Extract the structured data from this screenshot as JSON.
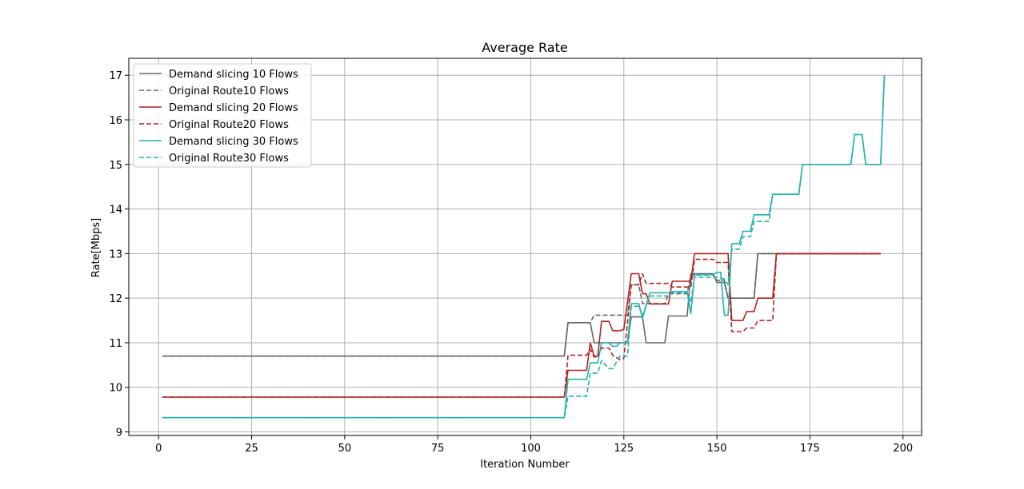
{
  "chart_data": {
    "type": "line",
    "title": "Average Rate",
    "xlabel": "Iteration Number",
    "ylabel": "Rate[Mbps]",
    "xlim": [
      -8,
      205
    ],
    "ylim": [
      8.92,
      17.38
    ],
    "xticks": [
      0,
      25,
      50,
      75,
      100,
      125,
      150,
      175,
      200
    ],
    "yticks": [
      9,
      10,
      11,
      12,
      13,
      14,
      15,
      16,
      17
    ],
    "grid": true,
    "legend_position": "upper-left",
    "colors": {
      "gray": "#666666",
      "red": "#b22222",
      "teal": "#20b2aa"
    },
    "series": [
      {
        "name": "Demand slicing 10 Flows",
        "color": "#666666",
        "dash": "solid",
        "points": [
          [
            1,
            10.7
          ],
          [
            109,
            10.7
          ],
          [
            110,
            11.45
          ],
          [
            116,
            11.45
          ],
          [
            117,
            11.0
          ],
          [
            126,
            11.0
          ],
          [
            127,
            11.58
          ],
          [
            130,
            11.58
          ],
          [
            131,
            11.0
          ],
          [
            136,
            11.0
          ],
          [
            137,
            11.6
          ],
          [
            142,
            11.6
          ],
          [
            143,
            12.55
          ],
          [
            149,
            12.55
          ],
          [
            150,
            12.35
          ],
          [
            152,
            12.35
          ],
          [
            153,
            12.0
          ],
          [
            160,
            12.0
          ],
          [
            161,
            13.0
          ],
          [
            194,
            13.0
          ]
        ]
      },
      {
        "name": "Original Route10 Flows",
        "color": "#666666",
        "dash": "dashed",
        "points": [
          [
            1,
            10.7
          ],
          [
            109,
            10.7
          ],
          [
            110,
            11.45
          ],
          [
            116,
            11.45
          ],
          [
            117,
            11.62
          ],
          [
            126,
            11.62
          ],
          [
            127,
            12.3
          ],
          [
            129,
            12.3
          ],
          [
            130,
            11.88
          ],
          [
            136,
            11.88
          ],
          [
            137,
            12.1
          ],
          [
            142,
            12.1
          ],
          [
            143,
            12.52
          ],
          [
            149,
            12.52
          ],
          [
            150,
            12.4
          ],
          [
            152,
            12.4
          ],
          [
            153,
            12.0
          ],
          [
            160,
            12.0
          ],
          [
            161,
            13.0
          ],
          [
            194,
            13.0
          ]
        ]
      },
      {
        "name": "Demand slicing 20 Flows",
        "color": "#b22222",
        "dash": "solid",
        "points": [
          [
            1,
            9.78
          ],
          [
            109,
            9.78
          ],
          [
            110,
            10.38
          ],
          [
            114,
            10.38
          ],
          [
            115,
            10.38
          ],
          [
            116,
            11.0
          ],
          [
            117,
            10.7
          ],
          [
            118,
            10.7
          ],
          [
            119,
            11.48
          ],
          [
            121,
            11.48
          ],
          [
            122,
            11.27
          ],
          [
            124,
            11.27
          ],
          [
            125,
            11.3
          ],
          [
            127,
            12.55
          ],
          [
            129,
            12.55
          ],
          [
            130,
            12.1
          ],
          [
            131,
            12.1
          ],
          [
            132,
            11.87
          ],
          [
            137,
            11.87
          ],
          [
            138,
            12.38
          ],
          [
            143,
            12.38
          ],
          [
            144,
            13.0
          ],
          [
            153,
            13.0
          ],
          [
            154,
            11.5
          ],
          [
            157,
            11.5
          ],
          [
            158,
            11.7
          ],
          [
            160,
            11.7
          ],
          [
            161,
            12.0
          ],
          [
            164,
            12.0
          ],
          [
            165,
            12.0
          ],
          [
            166,
            13.0
          ],
          [
            194,
            13.0
          ]
        ]
      },
      {
        "name": "Original Route20 Flows",
        "color": "#b22222",
        "dash": "dashed",
        "points": [
          [
            1,
            9.78
          ],
          [
            109,
            9.78
          ],
          [
            110,
            10.72
          ],
          [
            114,
            10.72
          ],
          [
            115,
            10.72
          ],
          [
            116,
            10.85
          ],
          [
            117,
            10.68
          ],
          [
            118,
            10.68
          ],
          [
            119,
            10.88
          ],
          [
            121,
            10.88
          ],
          [
            122,
            10.72
          ],
          [
            124,
            10.62
          ],
          [
            125,
            10.65
          ],
          [
            127,
            12.3
          ],
          [
            129,
            12.3
          ],
          [
            130,
            12.55
          ],
          [
            131,
            12.33
          ],
          [
            137,
            12.33
          ],
          [
            138,
            12.25
          ],
          [
            143,
            12.25
          ],
          [
            144,
            12.87
          ],
          [
            149,
            12.87
          ],
          [
            150,
            12.8
          ],
          [
            153,
            12.8
          ],
          [
            154,
            11.25
          ],
          [
            157,
            11.25
          ],
          [
            158,
            11.33
          ],
          [
            160,
            11.33
          ],
          [
            161,
            11.5
          ],
          [
            164,
            11.5
          ],
          [
            165,
            11.5
          ],
          [
            166,
            13.0
          ],
          [
            194,
            13.0
          ]
        ]
      },
      {
        "name": "Demand slicing 30 Flows",
        "color": "#20b2aa",
        "dash": "solid",
        "points": [
          [
            1,
            9.32
          ],
          [
            109,
            9.32
          ],
          [
            110,
            10.18
          ],
          [
            115,
            10.18
          ],
          [
            116,
            10.55
          ],
          [
            118,
            10.55
          ],
          [
            119,
            11.0
          ],
          [
            121,
            11.0
          ],
          [
            122,
            10.92
          ],
          [
            123,
            10.92
          ],
          [
            124,
            11.0
          ],
          [
            126,
            11.0
          ],
          [
            127,
            11.88
          ],
          [
            129,
            11.88
          ],
          [
            130,
            11.55
          ],
          [
            132,
            12.12
          ],
          [
            137,
            12.12
          ],
          [
            138,
            12.15
          ],
          [
            142,
            12.15
          ],
          [
            143,
            11.65
          ],
          [
            144,
            12.53
          ],
          [
            149,
            12.53
          ],
          [
            150,
            12.58
          ],
          [
            151,
            12.58
          ],
          [
            152,
            11.62
          ],
          [
            153,
            11.62
          ],
          [
            154,
            13.22
          ],
          [
            156,
            13.22
          ],
          [
            157,
            13.5
          ],
          [
            159,
            13.5
          ],
          [
            160,
            13.87
          ],
          [
            164,
            13.87
          ],
          [
            165,
            14.33
          ],
          [
            172,
            14.33
          ],
          [
            173,
            15.0
          ],
          [
            186,
            15.0
          ],
          [
            187,
            15.67
          ],
          [
            189,
            15.67
          ],
          [
            190,
            15.0
          ],
          [
            194,
            15.0
          ],
          [
            195,
            17.0
          ]
        ]
      },
      {
        "name": "Original Route30 Flows",
        "color": "#20b2aa",
        "dash": "dashed",
        "points": [
          [
            1,
            9.32
          ],
          [
            109,
            9.32
          ],
          [
            110,
            9.8
          ],
          [
            115,
            9.8
          ],
          [
            116,
            10.32
          ],
          [
            118,
            10.32
          ],
          [
            119,
            10.6
          ],
          [
            121,
            10.42
          ],
          [
            122,
            10.42
          ],
          [
            124,
            10.7
          ],
          [
            126,
            10.7
          ],
          [
            127,
            11.82
          ],
          [
            129,
            11.82
          ],
          [
            130,
            11.6
          ],
          [
            131,
            11.85
          ],
          [
            132,
            12.05
          ],
          [
            137,
            12.05
          ],
          [
            138,
            12.12
          ],
          [
            142,
            12.12
          ],
          [
            143,
            11.9
          ],
          [
            144,
            12.47
          ],
          [
            149,
            12.47
          ],
          [
            150,
            12.47
          ],
          [
            152,
            12.43
          ],
          [
            153,
            12.3
          ],
          [
            154,
            13.1
          ],
          [
            156,
            13.1
          ],
          [
            157,
            13.38
          ],
          [
            159,
            13.38
          ],
          [
            160,
            13.72
          ],
          [
            164,
            13.72
          ],
          [
            165,
            14.33
          ],
          [
            172,
            14.33
          ],
          [
            173,
            15.0
          ],
          [
            186,
            15.0
          ],
          [
            187,
            15.67
          ],
          [
            189,
            15.67
          ],
          [
            190,
            15.0
          ],
          [
            194,
            15.0
          ],
          [
            195,
            17.0
          ]
        ]
      }
    ]
  }
}
